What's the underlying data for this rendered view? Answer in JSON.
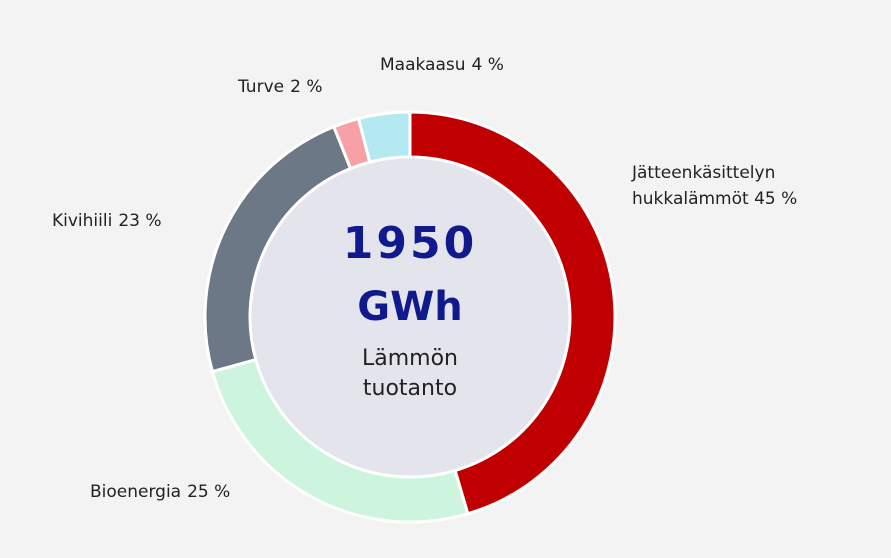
{
  "chart_data": {
    "type": "donut",
    "categories": [
      "Jätteenkäsittelyn hukkalämmöt",
      "Bioenergia",
      "Kivihiili",
      "Turve",
      "Maakaasu"
    ],
    "values": [
      45,
      25,
      23,
      2,
      4
    ],
    "value_labels": [
      "45 %",
      "25 %",
      "23 %",
      "2 %",
      "4 %"
    ],
    "colors": [
      "#c00000",
      "#cdf5dd",
      "#6c7886",
      "#f7a1a6",
      "#b5e9f1"
    ],
    "center_value": 1950,
    "center_unit": "GWh",
    "center_label": "Lämmön tuotanto"
  }
}
